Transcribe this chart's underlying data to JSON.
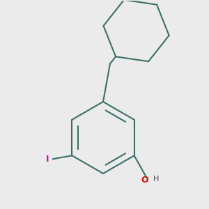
{
  "bg_color": "#ebebeb",
  "bond_color": "#3a7068",
  "oh_o_color": "#cc1100",
  "iodine_color": "#cc00cc",
  "iodine_label": "I",
  "oh_label": "O",
  "h_label": "H",
  "line_width": 1.5,
  "figsize": [
    3.0,
    3.0
  ],
  "dpi": 100
}
